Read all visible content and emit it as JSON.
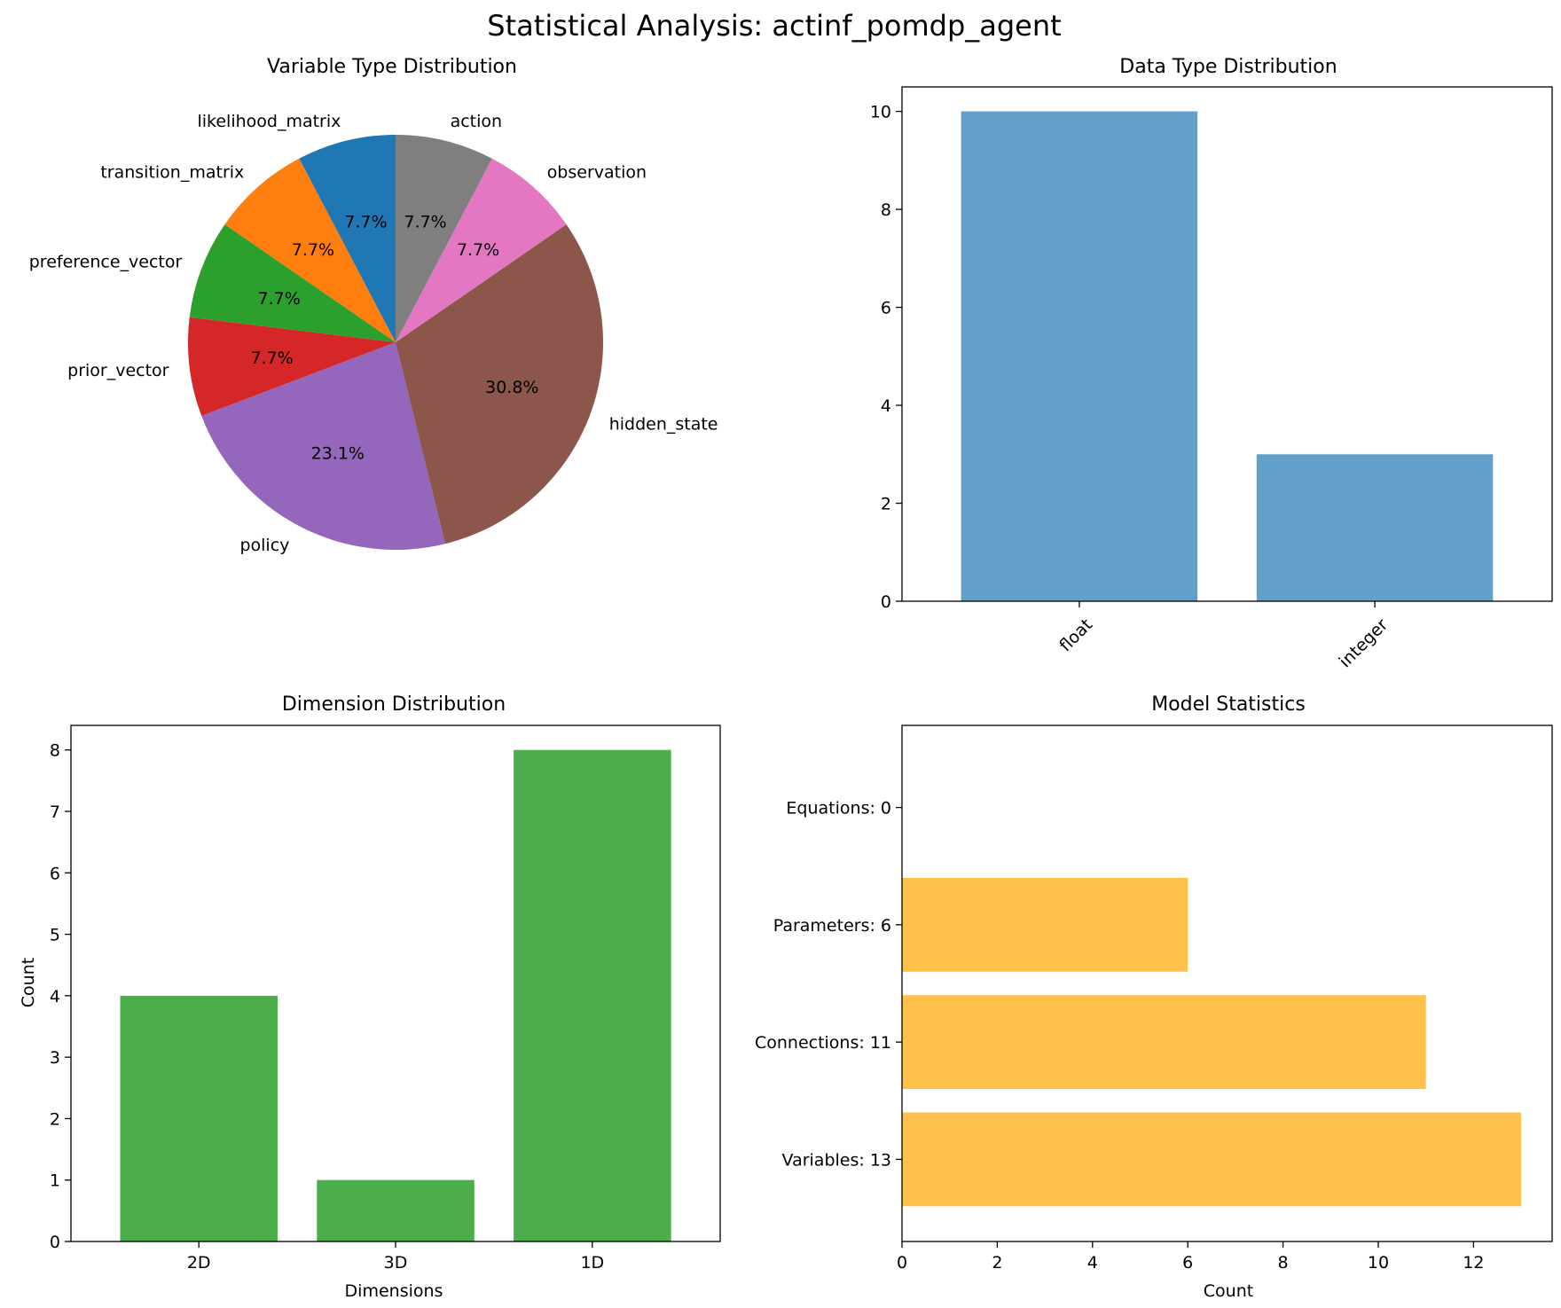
{
  "figure": {
    "title": "Statistical Analysis: actinf_pomdp_agent"
  },
  "chart_data": [
    {
      "id": "pie",
      "type": "pie",
      "title": "Variable Type Distribution",
      "start_angle_deg": 90,
      "direction": "counterclockwise",
      "slices": [
        {
          "label": "likelihood_matrix",
          "value": 1,
          "pct_label": "7.7%",
          "color": "#1f77b4"
        },
        {
          "label": "transition_matrix",
          "value": 1,
          "pct_label": "7.7%",
          "color": "#ff7f0e"
        },
        {
          "label": "preference_vector",
          "value": 1,
          "pct_label": "7.7%",
          "color": "#2ca02c"
        },
        {
          "label": "prior_vector",
          "value": 1,
          "pct_label": "7.7%",
          "color": "#d62728"
        },
        {
          "label": "policy",
          "value": 3,
          "pct_label": "23.1%",
          "color": "#9467bd"
        },
        {
          "label": "hidden_state",
          "value": 4,
          "pct_label": "30.8%",
          "color": "#8c564b"
        },
        {
          "label": "observation",
          "value": 1,
          "pct_label": "7.7%",
          "color": "#e377c2"
        },
        {
          "label": "action",
          "value": 1,
          "pct_label": "7.7%",
          "color": "#7f7f7f"
        }
      ]
    },
    {
      "id": "datatype",
      "type": "bar",
      "title": "Data Type Distribution",
      "xlabel": "",
      "ylabel": "",
      "categories": [
        "float",
        "integer"
      ],
      "values": [
        10,
        3
      ],
      "ylim": [
        0,
        10.5
      ],
      "yticks": [
        0,
        2,
        4,
        6,
        8,
        10
      ],
      "x_tick_rotation_deg": 45,
      "color": "#1f77b4",
      "alpha": 0.7
    },
    {
      "id": "dimension",
      "type": "bar",
      "title": "Dimension Distribution",
      "xlabel": "Dimensions",
      "ylabel": "Count",
      "categories": [
        "2D",
        "3D",
        "1D"
      ],
      "values": [
        4,
        1,
        8
      ],
      "ylim": [
        0,
        8.4
      ],
      "yticks": [
        0,
        1,
        2,
        3,
        4,
        5,
        6,
        7,
        8
      ],
      "color": "#2ca02c",
      "alpha": 0.85
    },
    {
      "id": "modelstats",
      "type": "bar",
      "orientation": "horizontal",
      "title": "Model Statistics",
      "xlabel": "Count",
      "ylabel": "",
      "categories": [
        "Variables: 13",
        "Connections: 11",
        "Parameters: 6",
        "Equations: 0"
      ],
      "values": [
        13,
        11,
        6,
        0
      ],
      "xlim": [
        0,
        13.65
      ],
      "xticks": [
        0,
        2,
        4,
        6,
        8,
        10,
        12
      ],
      "color": "#ffa500",
      "alpha": 0.7
    }
  ]
}
